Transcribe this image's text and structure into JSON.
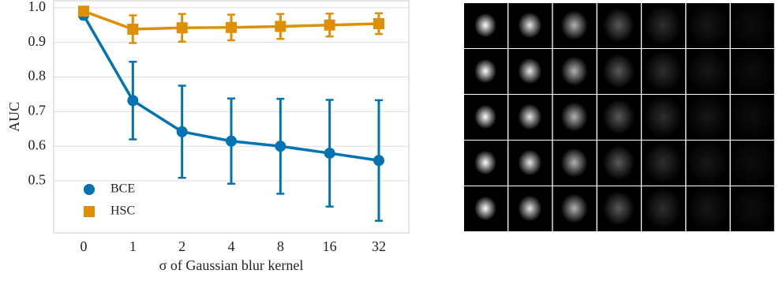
{
  "chart_data": {
    "type": "line",
    "xlabel": "σ of Gaussian blur kernel",
    "ylabel": "AUC",
    "categories": [
      "0",
      "1",
      "2",
      "4",
      "8",
      "16",
      "32"
    ],
    "series": [
      {
        "name": "BCE",
        "color": "#0173b2",
        "marker": "circle",
        "values": [
          0.978,
          0.732,
          0.642,
          0.615,
          0.6,
          0.58,
          0.559
        ],
        "errors": [
          0.01,
          0.112,
          0.133,
          0.123,
          0.137,
          0.154,
          0.174
        ]
      },
      {
        "name": "HSC",
        "color": "#de8f05",
        "marker": "square",
        "values": [
          0.99,
          0.938,
          0.942,
          0.943,
          0.946,
          0.95,
          0.954
        ],
        "errors": [
          0.005,
          0.04,
          0.04,
          0.037,
          0.036,
          0.033,
          0.03
        ]
      }
    ],
    "ylim": [
      0.35,
      1.02
    ],
    "yticks": [
      0.5,
      0.6,
      0.7,
      0.8,
      0.9,
      {
        "value": 1,
        "label": "1.0"
      }
    ],
    "grid": true,
    "legend": "lower left"
  }
}
